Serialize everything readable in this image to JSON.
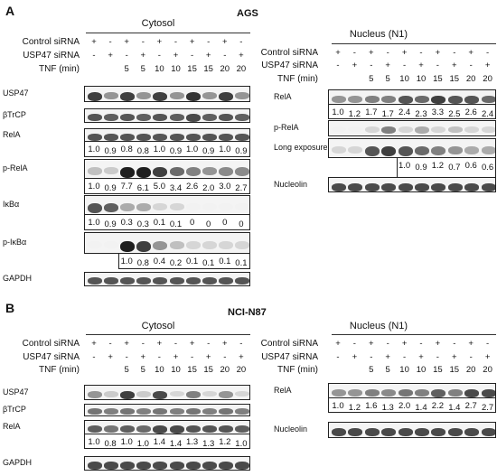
{
  "panels": [
    {
      "letter": "A",
      "line": "AGS",
      "sections": [
        {
          "title": "Cytosol",
          "conditions": [
            {
              "label": "Control siRNA",
              "values": [
                "+",
                "-",
                "+",
                "-",
                "+",
                "-",
                "+",
                "-",
                "+",
                "-"
              ]
            },
            {
              "label": "USP47 siRNA",
              "values": [
                "-",
                "+",
                "-",
                "+",
                "-",
                "+",
                "-",
                "+",
                "-",
                "+"
              ]
            },
            {
              "label": "TNF (min)",
              "values": [
                "",
                "",
                "5",
                "5",
                "10",
                "10",
                "15",
                "15",
                "20",
                "20"
              ]
            }
          ],
          "blots": [
            {
              "label": "USP47",
              "bands": [
                0.8,
                0.4,
                0.8,
                0.4,
                0.8,
                0.4,
                0.85,
                0.4,
                0.8,
                0.4
              ],
              "quant": []
            },
            {
              "label": "βTrCP",
              "bands": [
                0.7,
                0.65,
                0.7,
                0.65,
                0.7,
                0.65,
                0.75,
                0.65,
                0.7,
                0.65
              ],
              "quant": []
            },
            {
              "label": "RelA",
              "bands": [
                0.7,
                0.7,
                0.7,
                0.7,
                0.7,
                0.7,
                0.7,
                0.7,
                0.7,
                0.7
              ],
              "quant": [
                "1.0",
                "0.9",
                "0.8",
                "0.8",
                "1.0",
                "0.9",
                "1.0",
                "0.9",
                "1.0",
                "0.9"
              ]
            },
            {
              "label": "p-RelA",
              "bands": [
                0.2,
                0.15,
                0.95,
                0.95,
                0.8,
                0.6,
                0.5,
                0.4,
                0.45,
                0.45
              ],
              "quant": [
                "1.0",
                "0.9",
                "7.7",
                "6.1",
                "5.0",
                "3.4",
                "2.6",
                "2.0",
                "3.0",
                "2.7"
              ]
            },
            {
              "label": "IκBα",
              "bands": [
                0.7,
                0.65,
                0.3,
                0.3,
                0.1,
                0.1,
                0.0,
                0.0,
                0.0,
                0.0
              ],
              "quant": [
                "1.0",
                "0.9",
                "0.3",
                "0.3",
                "0.1",
                "0.1",
                "0",
                "0",
                "0",
                "0"
              ]
            },
            {
              "label": "p-IκBα",
              "bands": [
                0.0,
                0.0,
                0.95,
                0.8,
                0.4,
                0.2,
                0.1,
                0.1,
                0.1,
                0.1
              ],
              "quant": [
                "",
                "",
                "1.0",
                "0.8",
                "0.4",
                "0.2",
                "0.1",
                "0.1",
                "0.1",
                "0.1"
              ]
            },
            {
              "label": "GAPDH",
              "bands": [
                0.7,
                0.7,
                0.7,
                0.7,
                0.7,
                0.7,
                0.7,
                0.7,
                0.7,
                0.7
              ],
              "quant": []
            }
          ]
        },
        {
          "title": "Nucleus (N1)",
          "conditions": [
            {
              "label": "Control siRNA",
              "values": [
                "+",
                "-",
                "+",
                "-",
                "+",
                "-",
                "+",
                "-",
                "+",
                "-"
              ]
            },
            {
              "label": "USP47 siRNA",
              "values": [
                "-",
                "+",
                "-",
                "+",
                "-",
                "+",
                "-",
                "+",
                "-",
                "+"
              ]
            },
            {
              "label": "TNF (min)",
              "values": [
                "",
                "",
                "5",
                "5",
                "10",
                "10",
                "15",
                "15",
                "20",
                "20"
              ]
            }
          ],
          "blots": [
            {
              "label": "RelA",
              "bands": [
                0.4,
                0.4,
                0.5,
                0.5,
                0.7,
                0.6,
                0.8,
                0.7,
                0.7,
                0.6
              ],
              "quant": [
                "1.0",
                "1.2",
                "1.7",
                "1.7",
                "2.4",
                "2.3",
                "3.3",
                "2.5",
                "2.6",
                "2.4"
              ]
            },
            {
              "label": "p-RelA",
              "bands": [
                0.0,
                0.0,
                0.1,
                0.5,
                0.1,
                0.3,
                0.1,
                0.2,
                0.1,
                0.1
              ],
              "quant": []
            },
            {
              "label": "Long exposure",
              "bands": [
                0.1,
                0.1,
                0.7,
                0.8,
                0.7,
                0.6,
                0.5,
                0.4,
                0.3,
                0.3
              ],
              "quant": [
                "",
                "",
                "",
                "",
                "1.0",
                "0.9",
                "1.2",
                "0.7",
                "0.6",
                "0.6"
              ]
            },
            {
              "label": "Nucleolin",
              "bands": [
                0.75,
                0.75,
                0.75,
                0.75,
                0.75,
                0.75,
                0.75,
                0.75,
                0.75,
                0.75
              ],
              "quant": []
            }
          ]
        }
      ]
    },
    {
      "letter": "B",
      "line": "NCI-N87",
      "sections": [
        {
          "title": "Cytosol",
          "conditions": [
            {
              "label": "Control siRNA",
              "values": [
                "+",
                "-",
                "+",
                "-",
                "+",
                "-",
                "+",
                "-",
                "+",
                "-"
              ]
            },
            {
              "label": "USP47 siRNA",
              "values": [
                "-",
                "+",
                "-",
                "+",
                "-",
                "+",
                "-",
                "+",
                "-",
                "+"
              ]
            },
            {
              "label": "TNF (min)",
              "values": [
                "",
                "",
                "5",
                "5",
                "10",
                "10",
                "15",
                "15",
                "20",
                "20"
              ]
            }
          ],
          "blots": [
            {
              "label": "USP47",
              "bands": [
                0.4,
                0.15,
                0.8,
                0.15,
                0.75,
                0.1,
                0.5,
                0.1,
                0.4,
                0.1
              ],
              "quant": []
            },
            {
              "label": "βTrCP",
              "bands": [
                0.55,
                0.5,
                0.55,
                0.5,
                0.55,
                0.5,
                0.55,
                0.5,
                0.55,
                0.5
              ],
              "quant": []
            },
            {
              "label": "RelA",
              "bands": [
                0.65,
                0.55,
                0.65,
                0.6,
                0.75,
                0.75,
                0.7,
                0.7,
                0.7,
                0.65
              ],
              "quant": [
                "1.0",
                "0.8",
                "1.0",
                "1.0",
                "1.4",
                "1.4",
                "1.3",
                "1.3",
                "1.2",
                "1.0"
              ]
            },
            {
              "label": "GAPDH",
              "bands": [
                0.75,
                0.75,
                0.75,
                0.75,
                0.75,
                0.75,
                0.75,
                0.75,
                0.75,
                0.75
              ],
              "quant": []
            }
          ]
        },
        {
          "title": "Nucleus (N1)",
          "conditions": [
            {
              "label": "Control siRNA",
              "values": [
                "+",
                "-",
                "+",
                "-",
                "+",
                "-",
                "+",
                "-",
                "+",
                "-"
              ]
            },
            {
              "label": "USP47 siRNA",
              "values": [
                "-",
                "+",
                "-",
                "+",
                "-",
                "+",
                "-",
                "+",
                "-",
                "+"
              ]
            },
            {
              "label": "TNF (min)",
              "values": [
                "",
                "",
                "5",
                "5",
                "10",
                "10",
                "15",
                "15",
                "20",
                "20"
              ]
            }
          ],
          "blots": [
            {
              "label": "RelA",
              "bands": [
                0.4,
                0.4,
                0.5,
                0.45,
                0.55,
                0.5,
                0.65,
                0.5,
                0.75,
                0.75
              ],
              "quant": [
                "1.0",
                "1.2",
                "1.6",
                "1.3",
                "2.0",
                "1.4",
                "2.2",
                "1.4",
                "2.7",
                "2.7"
              ]
            },
            {
              "label": "Nucleolin",
              "bands": [
                0.75,
                0.75,
                0.75,
                0.75,
                0.75,
                0.75,
                0.75,
                0.75,
                0.75,
                0.75
              ],
              "quant": []
            }
          ]
        }
      ]
    }
  ]
}
